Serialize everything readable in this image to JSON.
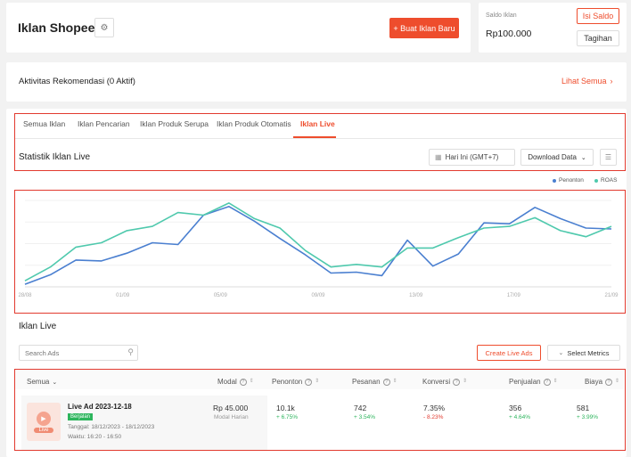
{
  "header": {
    "title": "Iklan Shopee",
    "create_button": "+ Buat Iklan Baru"
  },
  "balance": {
    "label": "Saldo Iklan",
    "amount": "Rp100.000",
    "topup_button": "Isi Saldo",
    "billing_button": "Tagihan"
  },
  "recommend": {
    "title": "Aktivitas Rekomendasi (0 Aktif)",
    "link": "Lihat Semua"
  },
  "tabs": [
    {
      "label": "Semua Iklan"
    },
    {
      "label": "Iklan Pencarian"
    },
    {
      "label": "Iklan Produk Serupa"
    },
    {
      "label": "Iklan Produk Otomatis"
    },
    {
      "label": "Iklan Live"
    }
  ],
  "stats": {
    "title": "Statistik Iklan Live",
    "date_filter": "Hari Ini (GMT+7)",
    "download_button": "Download Data"
  },
  "legend": {
    "penonton": "Penonton",
    "roas": "ROAS"
  },
  "colors": {
    "accent": "#ee4d2d",
    "penonton": "#4a7fd0",
    "roas": "#4fc9ad",
    "status_green": "#2db55d"
  },
  "chart_data": {
    "type": "line",
    "x_tick_labels": [
      "28/08",
      "01/09",
      "05/09",
      "09/09",
      "13/09",
      "17/09",
      "21/09"
    ],
    "series": [
      {
        "name": "Penonton",
        "values": [
          3,
          14,
          31,
          30,
          39,
          51,
          49,
          83,
          93,
          76,
          56,
          37,
          16,
          17,
          13,
          54,
          24,
          38,
          74,
          73,
          92,
          79,
          68,
          67
        ]
      },
      {
        "name": "ROAS",
        "values": [
          7,
          23,
          46,
          51,
          65,
          70,
          86,
          83,
          97,
          79,
          68,
          42,
          23,
          26,
          23,
          45,
          45,
          57,
          68,
          70,
          80,
          65,
          58,
          70
        ]
      }
    ],
    "grid": true,
    "legend_position": "top-right"
  },
  "list": {
    "title": "Iklan Live",
    "search_placeholder": "Search Ads",
    "create_live_button": "Create Live Ads",
    "metrics_button": "Select Metrics",
    "columns": {
      "all": "Semua",
      "modal": "Modal",
      "penonton": "Penonton",
      "pesanan": "Pesanan",
      "konversi": "Konversi",
      "penjualan": "Penjualan",
      "biaya": "Biaya"
    },
    "row": {
      "thumb_label": "Live",
      "name": "Live Ad 2023-12-18",
      "status": "Berjalan",
      "date": "Tanggal: 18/12/2023 - 18/12/2023",
      "time": "Waktu: 16:20 - 16:50",
      "modal": "Rp 45.000",
      "modal_sub": "Modal Harian",
      "penonton": "10.1k",
      "penonton_change": "+ 6.75%",
      "pesanan": "742",
      "pesanan_change": "+ 3.54%",
      "konversi": "7.35%",
      "konversi_change": "- 8.23%",
      "penjualan": "356",
      "penjualan_change": "+ 4.64%",
      "biaya": "581",
      "biaya_change": "+ 3.99%"
    }
  }
}
